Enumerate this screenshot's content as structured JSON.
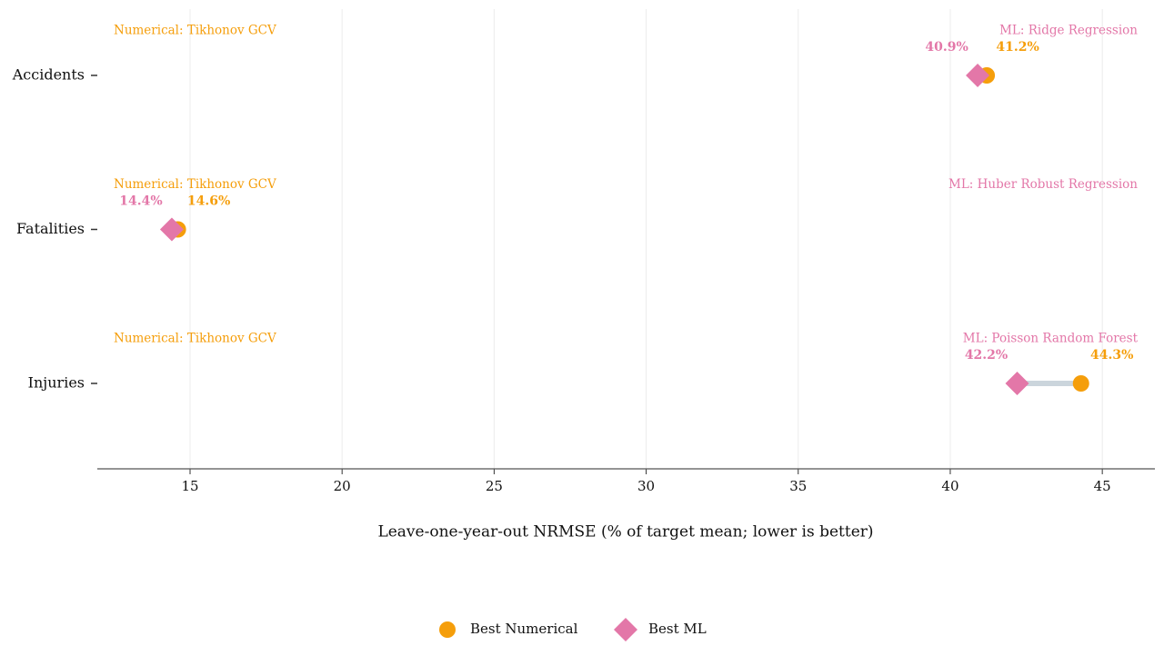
{
  "chart_data": {
    "type": "dumbbell",
    "categories": [
      "Accidents",
      "Fatalities",
      "Injuries"
    ],
    "series": [
      {
        "name": "Best Numerical",
        "color": "#f59e0b",
        "marker": "circle",
        "values": [
          41.2,
          14.6,
          44.3
        ],
        "value_labels": [
          "41.2%",
          "14.6%",
          "44.3%"
        ],
        "annotations": [
          "Numerical: Tikhonov GCV",
          "Numerical: Tikhonov GCV",
          "Numerical: Tikhonov GCV"
        ]
      },
      {
        "name": "Best ML",
        "color": "#e377a8",
        "marker": "diamond",
        "values": [
          40.9,
          14.4,
          42.2
        ],
        "value_labels": [
          "40.9%",
          "14.4%",
          "42.2%"
        ],
        "annotations": [
          "ML: Ridge Regression",
          "ML: Huber Robust Regression",
          "ML: Poisson Random Forest"
        ]
      }
    ],
    "xlabel": "Leave-one-year-out NRMSE (% of target mean; lower is better)",
    "xlim": [
      11.95,
      46.73
    ],
    "xticks": [
      15,
      20,
      25,
      30,
      35,
      40,
      45
    ],
    "grid": true,
    "connector_color": "#cbd5dc"
  }
}
